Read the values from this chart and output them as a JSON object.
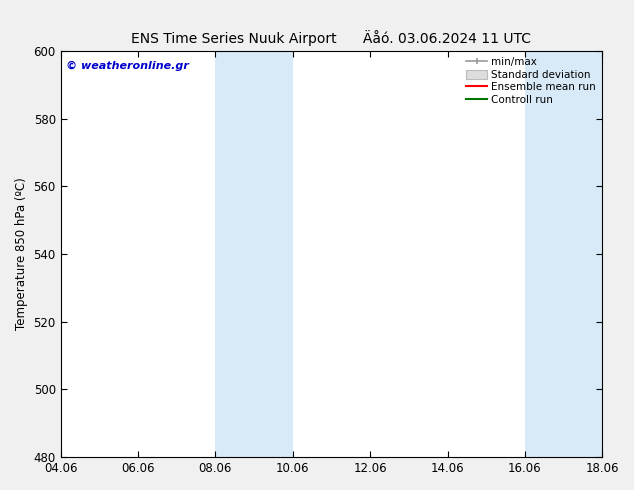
{
  "title_left": "ENS Time Series Nuuk Airport",
  "title_right": "Äåó. 03.06.2024 11 UTC",
  "ylabel": "Temperature 850 hPa (ºC)",
  "ylim": [
    480,
    600
  ],
  "yticks": [
    480,
    500,
    520,
    540,
    560,
    580,
    600
  ],
  "xtick_labels": [
    "04.06",
    "06.06",
    "08.06",
    "10.06",
    "12.06",
    "14.06",
    "16.06",
    "18.06"
  ],
  "xtick_positions": [
    0,
    2,
    4,
    6,
    8,
    10,
    12,
    14
  ],
  "x_min": 0,
  "x_max": 14,
  "shaded_bands": [
    {
      "x_start": 4,
      "x_end": 6,
      "color": "#d8eaf8"
    },
    {
      "x_start": 12,
      "x_end": 14,
      "color": "#d8eaf8"
    }
  ],
  "watermark_text": "© weatheronline.gr",
  "watermark_color": "#0000cc",
  "legend_items": [
    {
      "label": "min/max",
      "color": "#aaaaaa",
      "type": "errorbar"
    },
    {
      "label": "Standard deviation",
      "color": "#cccccc",
      "type": "rect"
    },
    {
      "label": "Ensemble mean run",
      "color": "#ff0000",
      "type": "line"
    },
    {
      "label": "Controll run",
      "color": "#007700",
      "type": "line"
    }
  ],
  "background_color": "#f0f0f0",
  "plot_bg_color": "#ffffff",
  "title_fontsize": 10,
  "axis_fontsize": 8.5,
  "tick_fontsize": 8.5,
  "legend_fontsize": 7.5
}
